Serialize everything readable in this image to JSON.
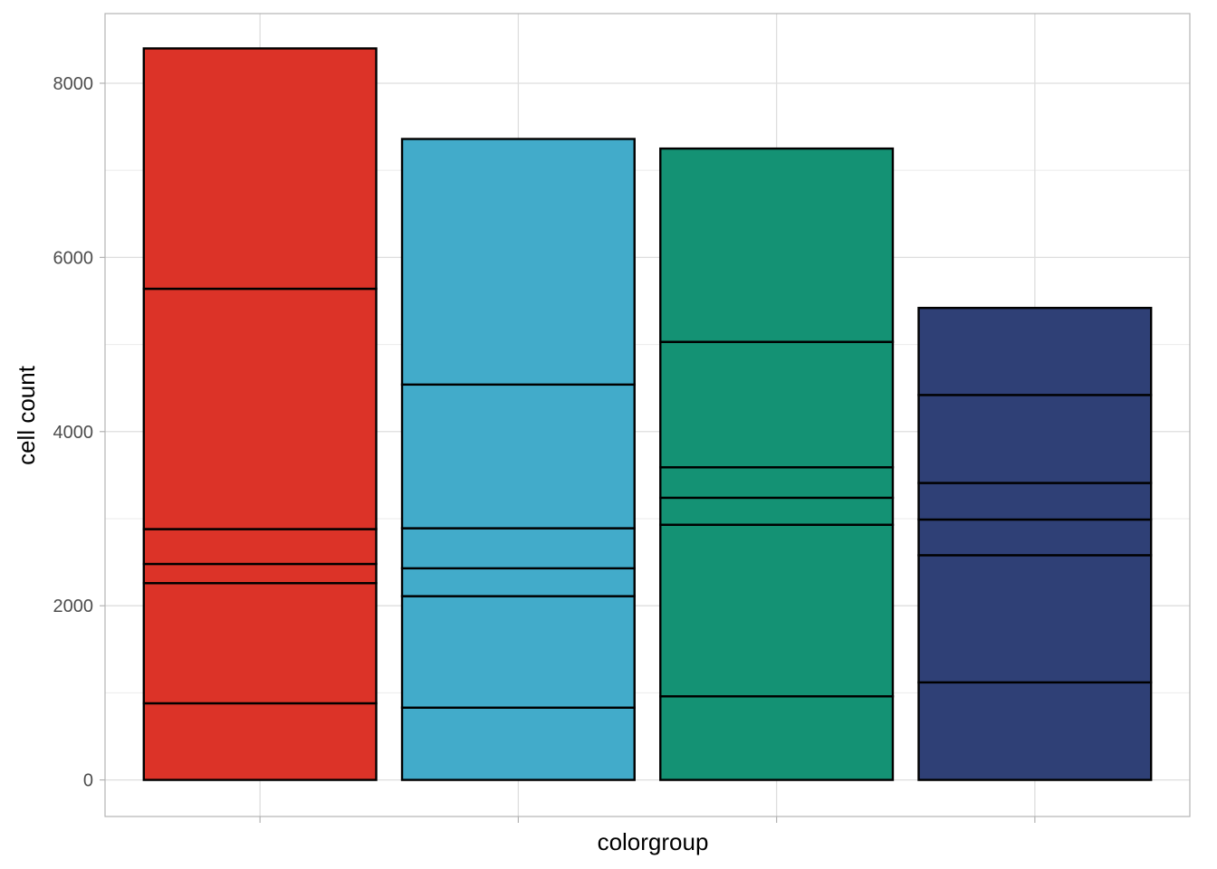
{
  "chart_data": {
    "type": "bar",
    "stacked": true,
    "title": "",
    "xlabel": "colorgroup",
    "ylabel": "cell count",
    "ylim": [
      -420,
      8800
    ],
    "yticks": [
      0,
      2000,
      4000,
      6000,
      8000
    ],
    "y_minor_gridlines": [
      1000,
      3000,
      5000,
      7000
    ],
    "grid": true,
    "legend": "none",
    "categories": [
      "",
      "",
      "",
      ""
    ],
    "colors": [
      "#DC3328",
      "#42ABCA",
      "#149274",
      "#2F4076"
    ],
    "bars": [
      {
        "total": 8400,
        "boundaries": [
          880,
          2260,
          2480,
          2880,
          5640,
          8400
        ]
      },
      {
        "total": 7360,
        "boundaries": [
          830,
          2110,
          2430,
          2890,
          4540,
          7360
        ]
      },
      {
        "total": 7250,
        "boundaries": [
          960,
          2930,
          3240,
          3590,
          5030,
          7250
        ]
      },
      {
        "total": 5420,
        "boundaries": [
          1120,
          2580,
          2990,
          3410,
          4420,
          5420
        ]
      }
    ]
  }
}
